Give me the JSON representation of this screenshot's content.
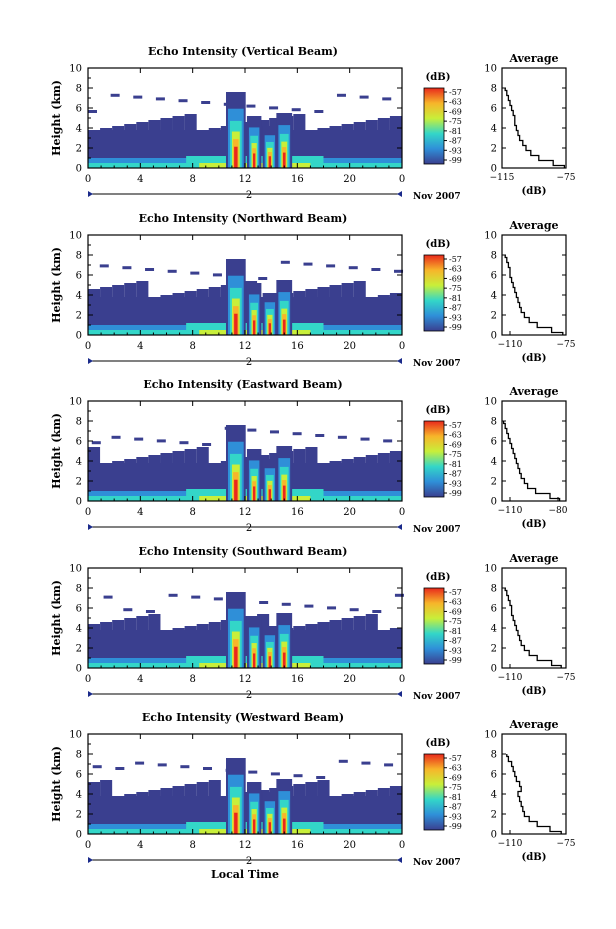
{
  "figure": {
    "xlabel": "Local Time",
    "date_label": "Nov 2007",
    "colorbar_unit": "(dB)",
    "colorbar_ticks": [
      "-57",
      "-63",
      "-69",
      "-75",
      "-81",
      "-87",
      "-93",
      "-99"
    ],
    "colors": {
      "low": "#3a3f8f",
      "mid_low": "#2f8fd8",
      "mid": "#33d6c8",
      "mid_high": "#c8ef3a",
      "high": "#f7b52a",
      "max": "#e8291c"
    }
  },
  "chart_data": [
    {
      "type": "heatmap",
      "title": "Echo Intensity (Vertical Beam)",
      "xlabel": "",
      "ylabel": "Height (km)",
      "xlim": [
        0,
        24
      ],
      "ylim": [
        0,
        10
      ],
      "xticks": [
        "0",
        "4",
        "8",
        "12",
        "16",
        "20",
        "0"
      ],
      "yticks": [
        "0",
        "2",
        "4",
        "6",
        "8",
        "10"
      ],
      "date_marker": "2",
      "profile": {
        "title": "Average",
        "xlabel": "(dB)",
        "xticks": [
          "-115",
          "-75"
        ],
        "xlim": [
          -115,
          -75
        ],
        "yticks": [
          "0",
          "2",
          "4",
          "6",
          "8",
          "10"
        ],
        "height": [
          0,
          0.5,
          1,
          1.5,
          2,
          2.5,
          3,
          3.5,
          4,
          4.5,
          5,
          5.5,
          6,
          6.5,
          7,
          7.5,
          8
        ],
        "db": [
          -76,
          -83,
          -92,
          -97,
          -100,
          -102,
          -104,
          -105,
          -106,
          -107,
          -107,
          -108,
          -109,
          -110,
          -111,
          -112,
          -113
        ]
      }
    },
    {
      "type": "heatmap",
      "title": "Echo Intensity (Northward Beam)",
      "xlabel": "",
      "ylabel": "Height (km)",
      "xlim": [
        0,
        24
      ],
      "ylim": [
        0,
        10
      ],
      "xticks": [
        "0",
        "4",
        "8",
        "12",
        "16",
        "20",
        "0"
      ],
      "yticks": [
        "0",
        "2",
        "4",
        "6",
        "8",
        "10"
      ],
      "date_marker": "2",
      "profile": {
        "title": "Average",
        "xlabel": "(dB)",
        "xticks": [
          "-110",
          "-75"
        ],
        "xlim": [
          -115,
          -75
        ],
        "yticks": [
          "0",
          "2",
          "4",
          "6",
          "8",
          "10"
        ],
        "height": [
          0,
          0.5,
          1,
          1.5,
          2,
          2.5,
          3,
          3.5,
          4,
          4.5,
          5,
          5.5,
          6,
          6.5,
          7,
          7.5,
          8
        ],
        "db": [
          -77,
          -84,
          -93,
          -98,
          -101,
          -103,
          -104,
          -105,
          -106,
          -107,
          -108,
          -109,
          -110,
          -110,
          -111,
          -112,
          -113
        ]
      }
    },
    {
      "type": "heatmap",
      "title": "Echo Intensity (Eastward Beam)",
      "xlabel": "",
      "ylabel": "Height (km)",
      "xlim": [
        0,
        24
      ],
      "ylim": [
        0,
        10
      ],
      "xticks": [
        "0",
        "4",
        "8",
        "12",
        "16",
        "20",
        "0"
      ],
      "yticks": [
        "0",
        "2",
        "4",
        "6",
        "8",
        "10"
      ],
      "date_marker": "2",
      "profile": {
        "title": "Average",
        "xlabel": "(dB)",
        "xticks": [
          "-110",
          "-80"
        ],
        "xlim": [
          -115,
          -75
        ],
        "yticks": [
          "0",
          "2",
          "4",
          "6",
          "8",
          "10"
        ],
        "height": [
          0,
          0.5,
          1,
          1.5,
          2,
          2.5,
          3,
          3.5,
          4,
          4.5,
          5,
          5.5,
          6,
          6.5,
          7,
          7.5,
          8
        ],
        "db": [
          -79,
          -85,
          -94,
          -99,
          -101,
          -103,
          -104,
          -105,
          -106,
          -107,
          -108,
          -109,
          -110,
          -111,
          -112,
          -113,
          -114
        ]
      }
    },
    {
      "type": "heatmap",
      "title": "Echo Intensity (Southward Beam)",
      "xlabel": "",
      "ylabel": "Height (km)",
      "xlim": [
        0,
        24
      ],
      "ylim": [
        0,
        10
      ],
      "xticks": [
        "0",
        "4",
        "8",
        "12",
        "16",
        "20",
        "0"
      ],
      "yticks": [
        "0",
        "2",
        "4",
        "6",
        "8",
        "10"
      ],
      "date_marker": "2",
      "profile": {
        "title": "Average",
        "xlabel": "(dB)",
        "xticks": [
          "-110",
          "-75"
        ],
        "xlim": [
          -115,
          -75
        ],
        "yticks": [
          "0",
          "2",
          "4",
          "6",
          "8",
          "10"
        ],
        "height": [
          0,
          0.5,
          1,
          1.5,
          2,
          2.5,
          3,
          3.5,
          4,
          4.5,
          5,
          5.5,
          6,
          6.5,
          7,
          7.5,
          8
        ],
        "db": [
          -78,
          -84,
          -93,
          -98,
          -101,
          -103,
          -104,
          -105,
          -106,
          -107,
          -108,
          -109,
          -109,
          -110,
          -111,
          -112,
          -113
        ]
      }
    },
    {
      "type": "heatmap",
      "title": "Echo Intensity (Westward Beam)",
      "xlabel": "",
      "ylabel": "Height (km)",
      "xlim": [
        0,
        24
      ],
      "ylim": [
        0,
        10
      ],
      "xticks": [
        "0",
        "4",
        "8",
        "12",
        "16",
        "20",
        "0"
      ],
      "yticks": [
        "0",
        "2",
        "4",
        "6",
        "8",
        "10"
      ],
      "date_marker": "2",
      "profile": {
        "title": "Average",
        "xlabel": "(dB)",
        "xticks": [
          "-110",
          "-75"
        ],
        "xlim": [
          -115,
          -75
        ],
        "yticks": [
          "0",
          "2",
          "4",
          "6",
          "8",
          "10"
        ],
        "height": [
          0,
          0.5,
          1,
          1.5,
          2,
          2.5,
          3,
          3.5,
          4,
          4.5,
          5,
          5.5,
          6,
          6.5,
          7,
          7.5,
          8
        ],
        "db": [
          -78,
          -85,
          -93,
          -98,
          -101,
          -102,
          -103,
          -104,
          -105,
          -103,
          -104,
          -106,
          -107,
          -108,
          -109,
          -111,
          -112
        ]
      }
    }
  ]
}
